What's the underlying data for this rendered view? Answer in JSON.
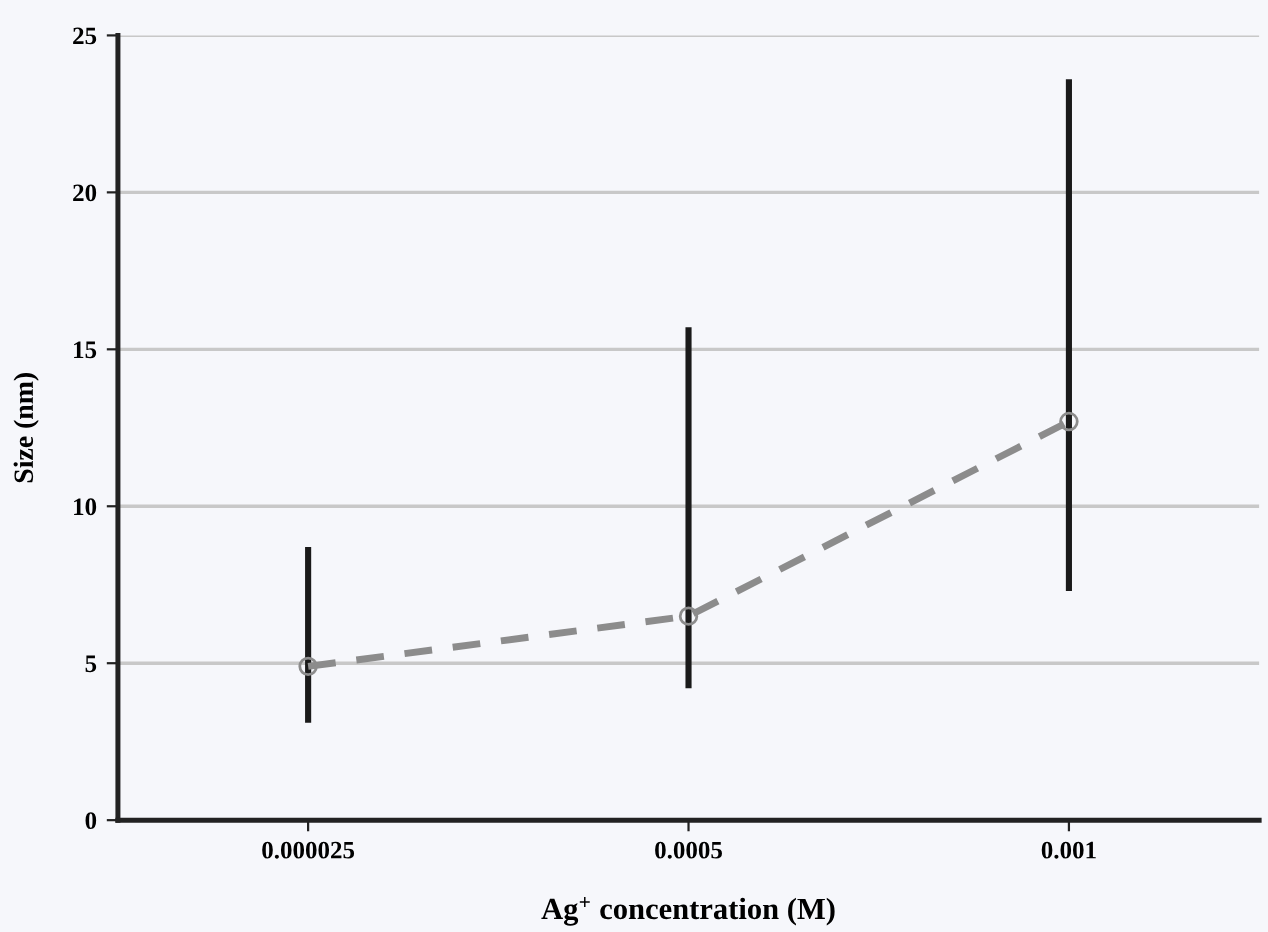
{
  "chart_data": {
    "type": "line",
    "xlabel": "Ag$^{+}$ concentration (M)",
    "ylabel": "Size (nm)",
    "categories": [
      "0.000025",
      "0.0005",
      "0.001"
    ],
    "series": [
      {
        "color": "#8c8c8c",
        "values": [
          4.9,
          6.5,
          12.7
        ],
        "errors": [
          [
            3.1,
            8.7
          ],
          [
            4.2,
            15.7
          ],
          [
            7.3,
            23.6
          ]
        ]
      }
    ],
    "ylim": [
      0,
      25
    ],
    "yticks": [
      0,
      5,
      10,
      15,
      20,
      25
    ],
    "grid": "y",
    "marker": "circle",
    "line_style": "dashed"
  }
}
